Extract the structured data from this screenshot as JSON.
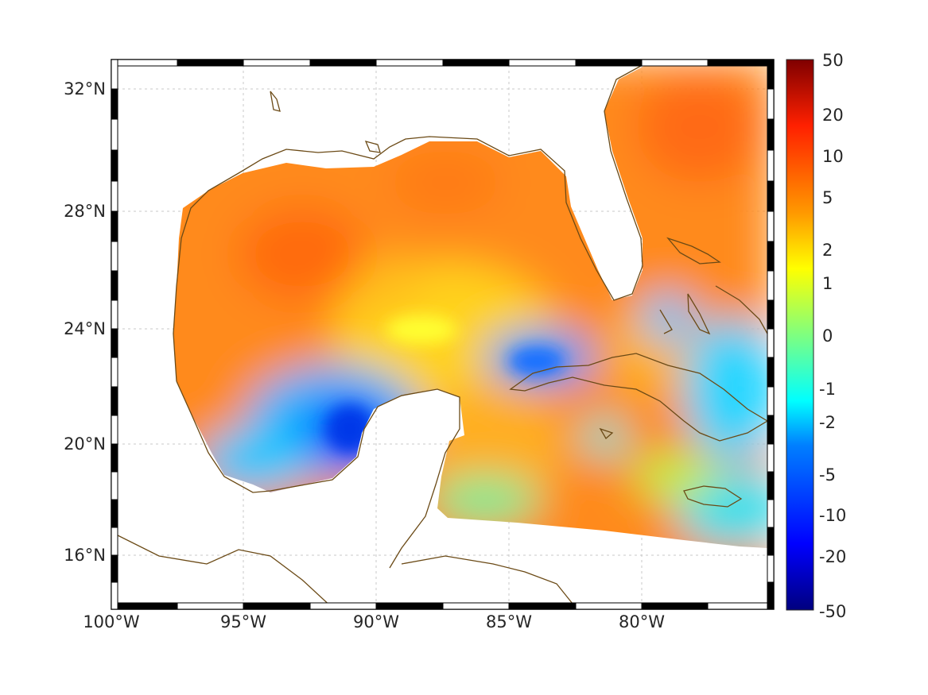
{
  "map": {
    "type": "heatmap",
    "lon_ticks": [
      "100°W",
      "95°W",
      "90°W",
      "85°W",
      "80°W"
    ],
    "lat_ticks": [
      "32°N",
      "28°N",
      "24°N",
      "20°N",
      "16°N"
    ],
    "lon_tick_values": [
      -100,
      -95,
      -90,
      -85,
      -80
    ],
    "lat_tick_values": [
      32,
      28,
      24,
      20,
      16
    ],
    "lon_range": [
      -100,
      -75.1
    ],
    "lat_range": [
      14.3,
      33.0
    ],
    "grid": true,
    "coastline_color": "#6b4a16"
  },
  "colorbar": {
    "tick_labels": [
      "50",
      "20",
      "10",
      "5",
      "2",
      "1",
      "0",
      "-1",
      "-2",
      "-5",
      "-10",
      "-20",
      "-50"
    ],
    "colormap": "jet",
    "scale": "symmetric-log"
  },
  "colors": {
    "land_ocean_mask": "#ffffff",
    "coast": "#6b4a16",
    "frame_dark": "#000000",
    "frame_light": "#ffffff"
  }
}
